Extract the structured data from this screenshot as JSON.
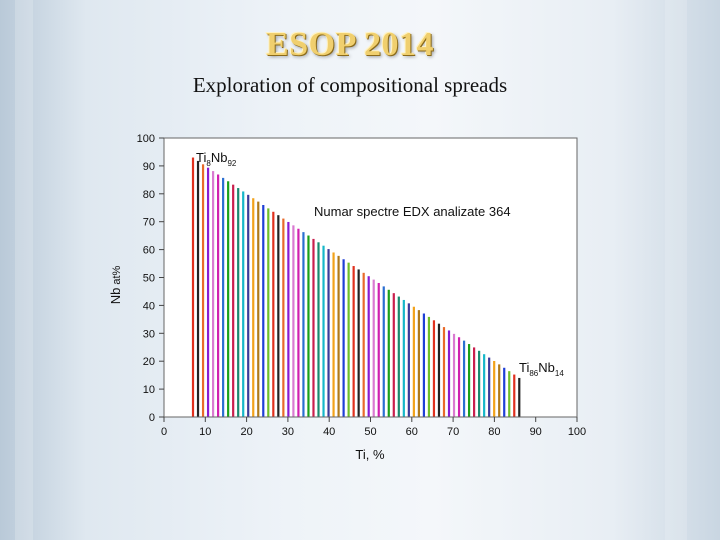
{
  "slide": {
    "title": "ESOP 2014",
    "subtitle": "Exploration of compositional spreads"
  },
  "chart_data": {
    "type": "bar",
    "xlabel": "Ti, %",
    "ylabel": "Nb, at%",
    "ylabel_parts": {
      "base": "Nb",
      "unit": "at%"
    },
    "xlim": [
      0,
      100
    ],
    "ylim": [
      0,
      100
    ],
    "x_ticks": [
      0,
      10,
      20,
      30,
      40,
      50,
      60,
      70,
      80,
      90,
      100
    ],
    "y_ticks": [
      0,
      10,
      20,
      30,
      40,
      50,
      60,
      70,
      80,
      90,
      100
    ],
    "grid": false,
    "bar_range": {
      "ti_start": 7,
      "ti_end": 86,
      "count": 66
    },
    "description_relation": "Nb = 100 - Ti; each bar is one analysed composition",
    "series": [
      {
        "name": "EDX spectra",
        "x_from": 7,
        "x_to": 86,
        "values_rule": "100 - x"
      }
    ],
    "annotations": {
      "top_composition": {
        "el1": "Ti",
        "sub1": "8",
        "el2": "Nb",
        "sub2": "92",
        "x": 8,
        "y": 92
      },
      "bottom_composition": {
        "el1": "Ti",
        "sub1": "86",
        "el2": "Nb",
        "sub2": "14",
        "x": 86,
        "y": 14
      },
      "spectra_note": "Numar spectre EDX analizate 364"
    },
    "bar_colors": [
      "#e0301e",
      "#1aa11a",
      "#1f3fd6",
      "#d11fb0",
      "#f2a21a",
      "#8a1bd1",
      "#16b7c9",
      "#222222",
      "#c91f4d",
      "#6fbf2a",
      "#2a6fd1",
      "#b07a1a",
      "#d97ad1",
      "#3a3a9a",
      "#e86a2a",
      "#1a8a6f"
    ]
  }
}
